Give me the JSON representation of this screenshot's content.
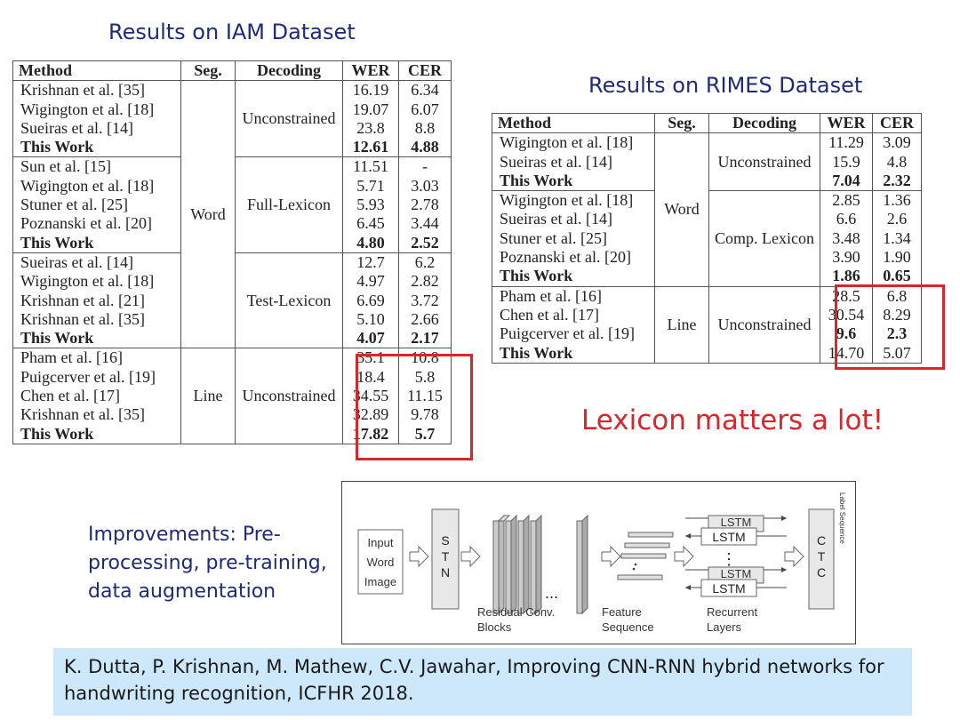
{
  "iam": {
    "title": "Results on IAM Dataset",
    "headers": [
      "Method",
      "Seg.",
      "Decoding",
      "WER",
      "CER"
    ],
    "seg_word": "Word",
    "seg_line": "Line",
    "groups": [
      {
        "decoding": "Unconstrained",
        "rows": [
          {
            "method": "Krishnan et al. [35]",
            "wer": "16.19",
            "cer": "6.34",
            "bold": false
          },
          {
            "method": "Wigington et al. [18]",
            "wer": "19.07",
            "cer": "6.07",
            "bold": false
          },
          {
            "method": "Sueiras et al. [14]",
            "wer": "23.8",
            "cer": "8.8",
            "bold": false
          },
          {
            "method": "This Work",
            "wer": "12.61",
            "cer": "4.88",
            "bold": true
          }
        ]
      },
      {
        "decoding": "Full-Lexicon",
        "rows": [
          {
            "method": "Sun et al. [15]",
            "wer": "11.51",
            "cer": "-",
            "bold": false
          },
          {
            "method": "Wigington et al. [18]",
            "wer": "5.71",
            "cer": "3.03",
            "bold": false
          },
          {
            "method": "Stuner et al. [25]",
            "wer": "5.93",
            "cer": "2.78",
            "bold": false
          },
          {
            "method": "Poznanski et al. [20]",
            "wer": "6.45",
            "cer": "3.44",
            "bold": false
          },
          {
            "method": "This Work",
            "wer": "4.80",
            "cer": "2.52",
            "bold": true
          }
        ]
      },
      {
        "decoding": "Test-Lexicon",
        "rows": [
          {
            "method": "Sueiras et al. [14]",
            "wer": "12.7",
            "cer": "6.2",
            "bold": false
          },
          {
            "method": "Wigington et al. [18]",
            "wer": "4.97",
            "cer": "2.82",
            "bold": false
          },
          {
            "method": "Krishnan et al. [21]",
            "wer": "6.69",
            "cer": "3.72",
            "bold": false
          },
          {
            "method": "Krishnan et al. [35]",
            "wer": "5.10",
            "cer": "2.66",
            "bold": false
          },
          {
            "method": "This Work",
            "wer": "4.07",
            "cer": "2.17",
            "bold": true
          }
        ]
      },
      {
        "decoding": "Unconstrained",
        "rows": [
          {
            "method": "Pham et al. [16]",
            "wer": "35.1",
            "cer": "10.8",
            "bold": false
          },
          {
            "method": "Puigcerver et al. [19]",
            "wer": "18.4",
            "cer": "5.8",
            "bold": false
          },
          {
            "method": "Chen et al. [17]",
            "wer": "34.55",
            "cer": "11.15",
            "bold": false
          },
          {
            "method": "Krishnan et al. [35]",
            "wer": "32.89",
            "cer": "9.78",
            "bold": false
          },
          {
            "method": "This Work",
            "wer": "17.82",
            "cer": "5.7",
            "bold": true
          }
        ]
      }
    ]
  },
  "rimes": {
    "title": "Results on RIMES Dataset",
    "headers": [
      "Method",
      "Seg.",
      "Decoding",
      "WER",
      "CER"
    ],
    "seg_word": "Word",
    "seg_line": "Line",
    "groups": [
      {
        "decoding": "Unconstrained",
        "rows": [
          {
            "method": "Wigington et al. [18]",
            "wer": "11.29",
            "cer": "3.09",
            "bold": false
          },
          {
            "method": "Sueiras et al. [14]",
            "wer": "15.9",
            "cer": "4.8",
            "bold": false
          },
          {
            "method": "This Work",
            "wer": "7.04",
            "cer": "2.32",
            "bold": true
          }
        ]
      },
      {
        "decoding": "Comp. Lexicon",
        "rows": [
          {
            "method": "Wigington et al. [18]",
            "wer": "2.85",
            "cer": "1.36",
            "bold": false
          },
          {
            "method": "Sueiras et al. [14]",
            "wer": "6.6",
            "cer": "2.6",
            "bold": false
          },
          {
            "method": "Stuner et al. [25]",
            "wer": "3.48",
            "cer": "1.34",
            "bold": false
          },
          {
            "method": "Poznanski et al. [20]",
            "wer": "3.90",
            "cer": "1.90",
            "bold": false
          },
          {
            "method": "This Work",
            "wer": "1.86",
            "cer": "0.65",
            "bold": true
          }
        ]
      },
      {
        "decoding": "Unconstrained",
        "rows": [
          {
            "method": "Pham et al. [16]",
            "wer": "28.5",
            "cer": "6.8",
            "bold": false
          },
          {
            "method": "Chen et al. [17]",
            "wer": "30.54",
            "cer": "8.29",
            "bold": false
          },
          {
            "method": "Puigcerver et al. [19]",
            "wer": "9.6",
            "cer": "2.3",
            "bold": false,
            "wer_bold": true,
            "cer_bold": true
          },
          {
            "method": "This Work",
            "wer": "14.70",
            "cer": "5.07",
            "bold": true,
            "wer_bold": false,
            "cer_bold": false
          }
        ]
      }
    ]
  },
  "highlight": "Lexicon matters a lot!",
  "improvements": "Improvements: Pre-processing, pre-training, data augmentation",
  "diagram": {
    "input_lines": [
      "Input",
      "Word",
      "Image"
    ],
    "stn_letters": [
      "S",
      "T",
      "N"
    ],
    "ctc_letters": [
      "C",
      "T",
      "C"
    ],
    "lstm_label": "LSTM",
    "ellipsis": "...",
    "vdots": "⋮",
    "residual_lines": [
      "Residual Conv.",
      "Blocks"
    ],
    "feature_lines": [
      "Feature",
      "Sequence"
    ],
    "recurrent_lines": [
      "Recurrent",
      "Layers"
    ],
    "label_sequence": "Label Sequence"
  },
  "citation": "K. Dutta, P. Krishnan, M. Mathew, C.V. Jawahar, Improving CNN-RNN hybrid networks for handwriting recognition, ICFHR 2018."
}
